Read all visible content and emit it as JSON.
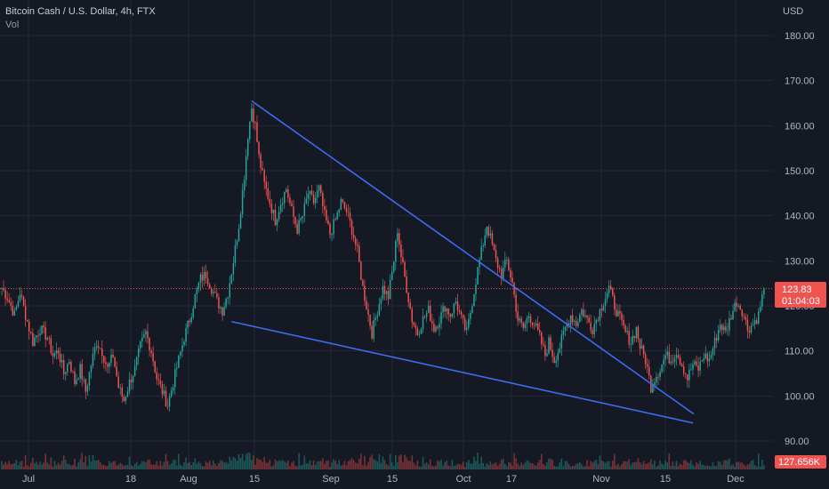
{
  "header": {
    "symbol_title": "Bitcoin Cash / U.S. Dollar, 4h, FTX",
    "volume_label": "Vol"
  },
  "colors": {
    "background": "#151924",
    "grid": "#22273a",
    "up": "#26a69a",
    "down": "#ef5350",
    "trendline": "#3a6df0",
    "price_line": "#ef5350",
    "axis_text": "#b2b5be"
  },
  "chart_data": {
    "type": "candlestick",
    "x_axis": {
      "ticks": [
        "Jul",
        "18",
        "Aug",
        "15",
        "Sep",
        "15",
        "Oct",
        "17",
        "Nov",
        "15",
        "Dec"
      ]
    },
    "y_axis": {
      "unit_label": "USD",
      "ticks": [
        "180.00",
        "170.00",
        "160.00",
        "150.00",
        "140.00",
        "130.00",
        "120.00",
        "110.00",
        "100.00",
        "90.00"
      ],
      "range": [
        86,
        185
      ]
    },
    "last_price": {
      "value": 123.83,
      "label": "123.83",
      "countdown": "01:04:03"
    },
    "volume_last": {
      "label": "127.656K"
    },
    "price_path": [
      [
        0,
        124
      ],
      [
        3,
        122
      ],
      [
        7,
        118
      ],
      [
        10,
        123
      ],
      [
        13,
        118
      ],
      [
        17,
        112
      ],
      [
        21,
        115
      ],
      [
        25,
        113
      ],
      [
        28,
        109
      ],
      [
        31,
        110
      ],
      [
        34,
        105
      ],
      [
        37,
        108
      ],
      [
        40,
        103
      ],
      [
        43,
        106
      ],
      [
        46,
        101
      ],
      [
        49,
        107
      ],
      [
        52,
        112
      ],
      [
        55,
        110
      ],
      [
        58,
        106
      ],
      [
        61,
        109
      ],
      [
        64,
        102
      ],
      [
        67,
        99
      ],
      [
        70,
        103
      ],
      [
        73,
        106
      ],
      [
        76,
        111
      ],
      [
        79,
        114
      ],
      [
        82,
        110
      ],
      [
        85,
        104
      ],
      [
        88,
        101
      ],
      [
        91,
        98
      ],
      [
        94,
        103
      ],
      [
        97,
        108
      ],
      [
        100,
        113
      ],
      [
        103,
        117
      ],
      [
        106,
        122
      ],
      [
        109,
        126
      ],
      [
        112,
        127
      ],
      [
        115,
        124
      ],
      [
        118,
        121
      ],
      [
        121,
        119
      ],
      [
        124,
        123
      ],
      [
        127,
        130
      ],
      [
        130,
        138
      ],
      [
        133,
        149
      ],
      [
        135,
        158
      ],
      [
        137,
        164
      ],
      [
        139,
        160
      ],
      [
        141,
        153
      ],
      [
        144,
        147
      ],
      [
        147,
        143
      ],
      [
        150,
        139
      ],
      [
        153,
        143
      ],
      [
        156,
        146
      ],
      [
        159,
        141
      ],
      [
        162,
        137
      ],
      [
        165,
        140
      ],
      [
        168,
        145
      ],
      [
        171,
        143
      ],
      [
        174,
        146
      ],
      [
        177,
        140
      ],
      [
        180,
        136
      ],
      [
        183,
        139
      ],
      [
        186,
        143
      ],
      [
        189,
        141
      ],
      [
        192,
        137
      ],
      [
        195,
        132
      ],
      [
        198,
        124
      ],
      [
        201,
        118
      ],
      [
        203,
        114
      ],
      [
        206,
        119
      ],
      [
        209,
        124
      ],
      [
        212,
        122
      ],
      [
        215,
        130
      ],
      [
        217,
        137
      ],
      [
        219,
        131
      ],
      [
        222,
        124
      ],
      [
        225,
        117
      ],
      [
        228,
        114
      ],
      [
        231,
        117
      ],
      [
        234,
        119
      ],
      [
        237,
        115
      ],
      [
        240,
        117
      ],
      [
        243,
        120
      ],
      [
        246,
        118
      ],
      [
        249,
        121
      ],
      [
        252,
        117
      ],
      [
        255,
        114
      ],
      [
        258,
        121
      ],
      [
        261,
        128
      ],
      [
        264,
        134
      ],
      [
        266,
        138
      ],
      [
        268,
        135
      ],
      [
        271,
        130
      ],
      [
        274,
        127
      ],
      [
        277,
        130
      ],
      [
        280,
        125
      ],
      [
        283,
        117
      ],
      [
        286,
        115
      ],
      [
        289,
        118
      ],
      [
        292,
        116
      ],
      [
        295,
        113
      ],
      [
        298,
        109
      ],
      [
        300,
        112
      ],
      [
        303,
        108
      ],
      [
        306,
        111
      ],
      [
        309,
        115
      ],
      [
        312,
        118
      ],
      [
        315,
        116
      ],
      [
        318,
        119
      ],
      [
        321,
        117
      ],
      [
        324,
        115
      ],
      [
        327,
        118
      ],
      [
        330,
        121
      ],
      [
        333,
        124
      ],
      [
        336,
        120
      ],
      [
        339,
        117
      ],
      [
        342,
        114
      ],
      [
        345,
        112
      ],
      [
        348,
        115
      ],
      [
        350,
        111
      ],
      [
        353,
        108
      ],
      [
        356,
        102
      ],
      [
        358,
        104
      ],
      [
        361,
        106
      ],
      [
        364,
        109
      ],
      [
        367,
        108
      ],
      [
        370,
        110
      ],
      [
        373,
        107
      ],
      [
        376,
        104
      ],
      [
        379,
        107
      ],
      [
        382,
        106
      ],
      [
        385,
        109
      ],
      [
        388,
        108
      ],
      [
        391,
        112
      ],
      [
        394,
        116
      ],
      [
        397,
        114
      ],
      [
        400,
        118
      ],
      [
        403,
        121
      ],
      [
        406,
        119
      ],
      [
        409,
        115
      ],
      [
        412,
        116
      ],
      [
        415,
        118
      ],
      [
        418,
        124
      ]
    ]
  }
}
